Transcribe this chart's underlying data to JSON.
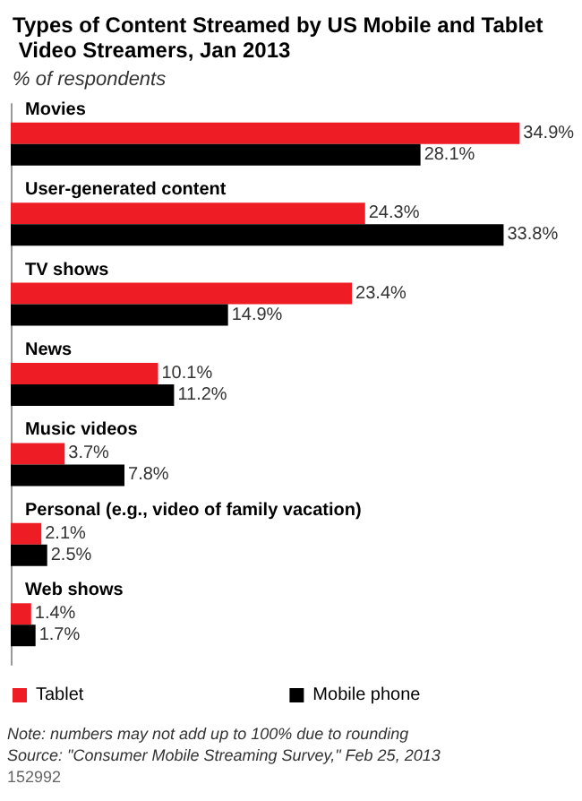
{
  "chart_data": {
    "type": "bar",
    "orientation": "horizontal",
    "title": "Types of Content Streamed by US Mobile and Tablet Video Streamers, Jan 2013",
    "subtitle": "% of respondents",
    "categories": [
      "Movies",
      "User-generated content",
      "TV shows",
      "News",
      "Music videos",
      "Personal (e.g., video of family vacation)",
      "Web shows"
    ],
    "series": [
      {
        "name": "Tablet",
        "color": "#ee1c25",
        "values": [
          34.9,
          24.3,
          23.4,
          10.1,
          3.7,
          2.1,
          1.4
        ],
        "value_labels": [
          "34.9%",
          "24.3%",
          "23.4%",
          "10.1%",
          "3.7%",
          "2.1%",
          "1.4%"
        ]
      },
      {
        "name": "Mobile phone",
        "color": "#000000",
        "values": [
          28.1,
          33.8,
          14.9,
          11.2,
          7.8,
          2.5,
          1.7
        ],
        "value_labels": [
          "28.1%",
          "33.8%",
          "14.9%",
          "11.2%",
          "7.8%",
          "2.5%",
          "1.7%"
        ]
      }
    ],
    "legend": "bottom",
    "grid": false,
    "annotations": [
      "Note: numbers may not add up to 100% due to rounding",
      "Source: \"Consumer Mobile Streaming Survey,\" Feb 25, 2013",
      "152992"
    ]
  }
}
